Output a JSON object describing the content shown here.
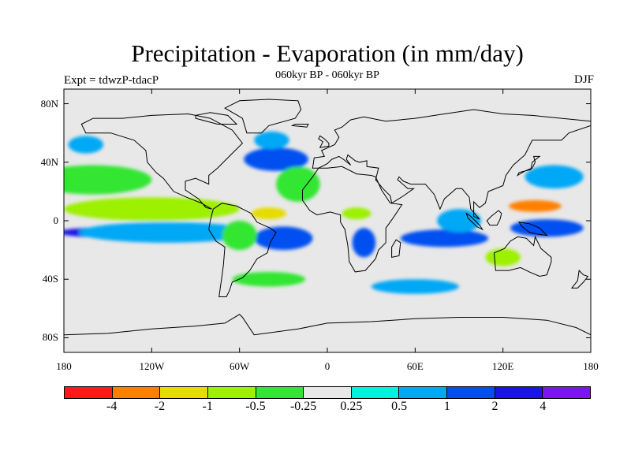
{
  "title": "Precipitation - Evaporation (in mm/day)",
  "subtitle": "060kyr BP - 060kyr BP",
  "experiment": "Expt = tdwzP-tdacP",
  "season": "DJF",
  "map": {
    "lon_range": [
      -180,
      180
    ],
    "lat_range": [
      -90,
      90
    ],
    "land_color": "#e8e8e8",
    "coast_color": "#000000",
    "lat_ticks": [
      {
        "value": 80,
        "label": "80N"
      },
      {
        "value": 40,
        "label": "40N"
      },
      {
        "value": 0,
        "label": "0"
      },
      {
        "value": -40,
        "label": "40S"
      },
      {
        "value": -80,
        "label": "80S"
      }
    ],
    "lon_ticks": [
      {
        "value": -180,
        "label": "180"
      },
      {
        "value": -120,
        "label": "120W"
      },
      {
        "value": -60,
        "label": "60W"
      },
      {
        "value": 0,
        "label": "0"
      },
      {
        "value": 60,
        "label": "60E"
      },
      {
        "value": 120,
        "label": "120E"
      },
      {
        "value": 180,
        "label": "180"
      }
    ]
  },
  "colorbar": {
    "colors": [
      "#ff1a1a",
      "#ff8000",
      "#e6dc00",
      "#9cf000",
      "#33e633",
      "#e8e8e8",
      "#00f5d8",
      "#00a8f5",
      "#0050f0",
      "#1a14e6",
      "#7a14f0"
    ],
    "labels": [
      "-4",
      "-2",
      "-1",
      "-0.5",
      "-0.25",
      "0.25",
      "0.5",
      "1",
      "2",
      "4"
    ]
  },
  "chart_data": {
    "type": "heatmap",
    "title": "Precipitation - Evaporation (in mm/day)",
    "subtitle": "060kyr BP - 060kyr BP",
    "levels": [
      -4,
      -2,
      -1,
      -0.5,
      -0.25,
      0.25,
      0.5,
      1,
      2,
      4
    ],
    "regions": [
      {
        "lon": -130,
        "lat": -8,
        "dlon": 55,
        "dlat": 4,
        "value": 2.5
      },
      {
        "lon": -110,
        "lat": -8,
        "dlon": 60,
        "dlat": 7,
        "value": 0.7
      },
      {
        "lon": -125,
        "lat": 5,
        "dlon": 45,
        "dlat": 3,
        "value": -3
      },
      {
        "lon": -120,
        "lat": 8,
        "dlon": 60,
        "dlat": 8,
        "value": -0.6
      },
      {
        "lon": -160,
        "lat": 28,
        "dlon": 40,
        "dlat": 10,
        "value": -0.4
      },
      {
        "lon": -165,
        "lat": 52,
        "dlon": 12,
        "dlat": 6,
        "value": 0.6
      },
      {
        "lon": -35,
        "lat": 42,
        "dlon": 22,
        "dlat": 8,
        "value": 1.6
      },
      {
        "lon": -38,
        "lat": 55,
        "dlon": 12,
        "dlat": 6,
        "value": 0.6
      },
      {
        "lon": -40,
        "lat": 5,
        "dlon": 12,
        "dlat": 4,
        "value": -1.8
      },
      {
        "lon": -30,
        "lat": -12,
        "dlon": 20,
        "dlat": 8,
        "value": 1.3
      },
      {
        "lon": -20,
        "lat": 25,
        "dlon": 15,
        "dlat": 12,
        "value": -0.4
      },
      {
        "lon": -60,
        "lat": -10,
        "dlon": 12,
        "dlat": 10,
        "value": -0.4
      },
      {
        "lon": 25,
        "lat": -15,
        "dlon": 8,
        "dlat": 10,
        "value": 1.5
      },
      {
        "lon": 20,
        "lat": 5,
        "dlon": 10,
        "dlat": 4,
        "value": -1
      },
      {
        "lon": 80,
        "lat": -12,
        "dlon": 30,
        "dlat": 6,
        "value": 1.5
      },
      {
        "lon": 90,
        "lat": 0,
        "dlon": 15,
        "dlat": 8,
        "value": 0.6
      },
      {
        "lon": 142,
        "lat": 10,
        "dlon": 18,
        "dlat": 4,
        "value": -3
      },
      {
        "lon": 150,
        "lat": -5,
        "dlon": 25,
        "dlat": 6,
        "value": 1.6
      },
      {
        "lon": 155,
        "lat": 30,
        "dlon": 20,
        "dlat": 8,
        "value": 0.6
      },
      {
        "lon": 60,
        "lat": -45,
        "dlon": 30,
        "dlat": 5,
        "value": 0.6
      },
      {
        "lon": -40,
        "lat": -40,
        "dlon": 25,
        "dlat": 5,
        "value": -0.4
      },
      {
        "lon": 120,
        "lat": -25,
        "dlon": 12,
        "dlat": 6,
        "value": -1
      }
    ]
  }
}
